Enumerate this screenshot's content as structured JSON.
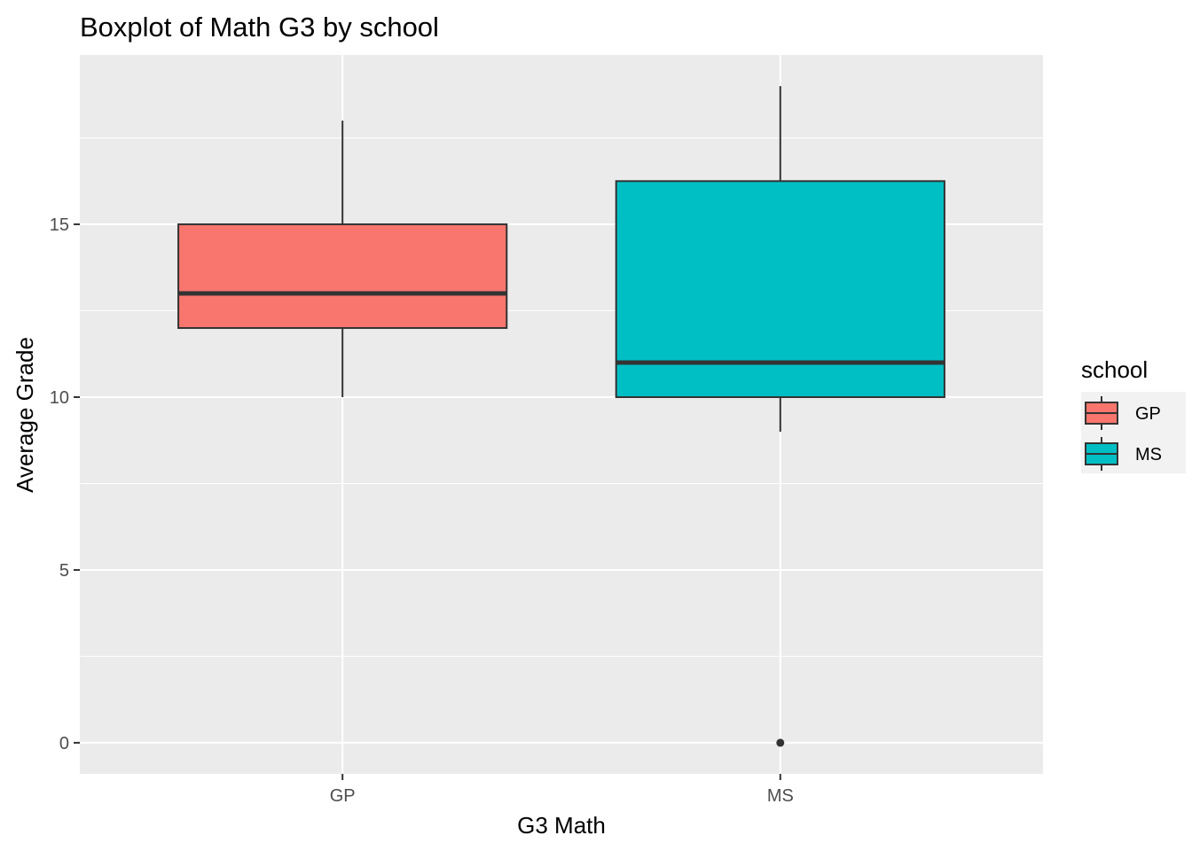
{
  "chart_data": {
    "type": "boxplot",
    "title": "Boxplot of Math G3 by school",
    "xlabel": "G3 Math",
    "ylabel": "Average Grade",
    "categories": [
      "GP",
      "MS"
    ],
    "ylim": [
      -0.9,
      19.9
    ],
    "yticks": [
      0,
      5,
      10,
      15
    ],
    "grid": true,
    "legend": {
      "title": "school",
      "position": "right",
      "entries": [
        "GP",
        "MS"
      ]
    },
    "boxes": [
      {
        "category": "GP",
        "whisker_low": 10,
        "q1": 12,
        "median": 13,
        "q3": 15,
        "whisker_high": 18,
        "outliers": [],
        "color": "#F8766D"
      },
      {
        "category": "MS",
        "whisker_low": 9,
        "q1": 10,
        "median": 11,
        "q3": 16.25,
        "whisker_high": 19,
        "outliers": [
          0
        ],
        "color": "#00BFC4"
      }
    ]
  },
  "colors": {
    "panel": "#EBEBEB",
    "grid": "#FFFFFF",
    "outline": "#333333"
  }
}
